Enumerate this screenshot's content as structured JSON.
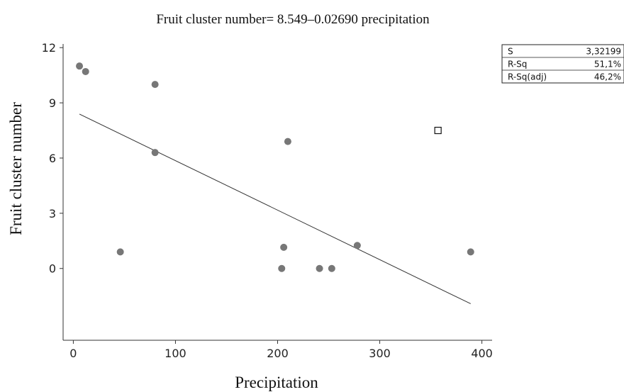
{
  "chart_data": {
    "type": "scatter",
    "title": "Fruit cluster number= 8.549–0.02690 precipitation",
    "xlabel": "Precipitation",
    "ylabel": "Fruit cluster number",
    "xlim": [
      -10,
      410
    ],
    "ylim": [
      -3.9,
      12.2
    ],
    "x_ticks": [
      0,
      100,
      200,
      300,
      400
    ],
    "x_tick_labels": [
      "0",
      "100",
      "200",
      "300",
      "400"
    ],
    "y_ticks": [
      0,
      3,
      6,
      9,
      12
    ],
    "y_tick_labels": [
      "0",
      "3",
      "6",
      "9",
      "12"
    ],
    "grid": false,
    "points": [
      {
        "x": 6,
        "y": 11.0
      },
      {
        "x": 12,
        "y": 10.7
      },
      {
        "x": 80,
        "y": 10.0
      },
      {
        "x": 80,
        "y": 6.3
      },
      {
        "x": 46,
        "y": 0.9
      },
      {
        "x": 210,
        "y": 6.9
      },
      {
        "x": 206,
        "y": 1.15
      },
      {
        "x": 204,
        "y": 0.0
      },
      {
        "x": 241,
        "y": 0.0
      },
      {
        "x": 253,
        "y": 0.0
      },
      {
        "x": 278,
        "y": 1.25
      },
      {
        "x": 389,
        "y": 0.9
      }
    ],
    "highlighted_points": [
      {
        "x": 357,
        "y": 7.5
      }
    ],
    "fit_line": {
      "intercept": 8.549,
      "slope": -0.0269,
      "x_range": [
        6,
        389
      ]
    },
    "stats_table": [
      {
        "label": "S",
        "value": "3,32199"
      },
      {
        "label": "R-Sq",
        "value": "51,1%"
      },
      {
        "label": "R-Sq(adj)",
        "value": "46,2%"
      }
    ]
  }
}
